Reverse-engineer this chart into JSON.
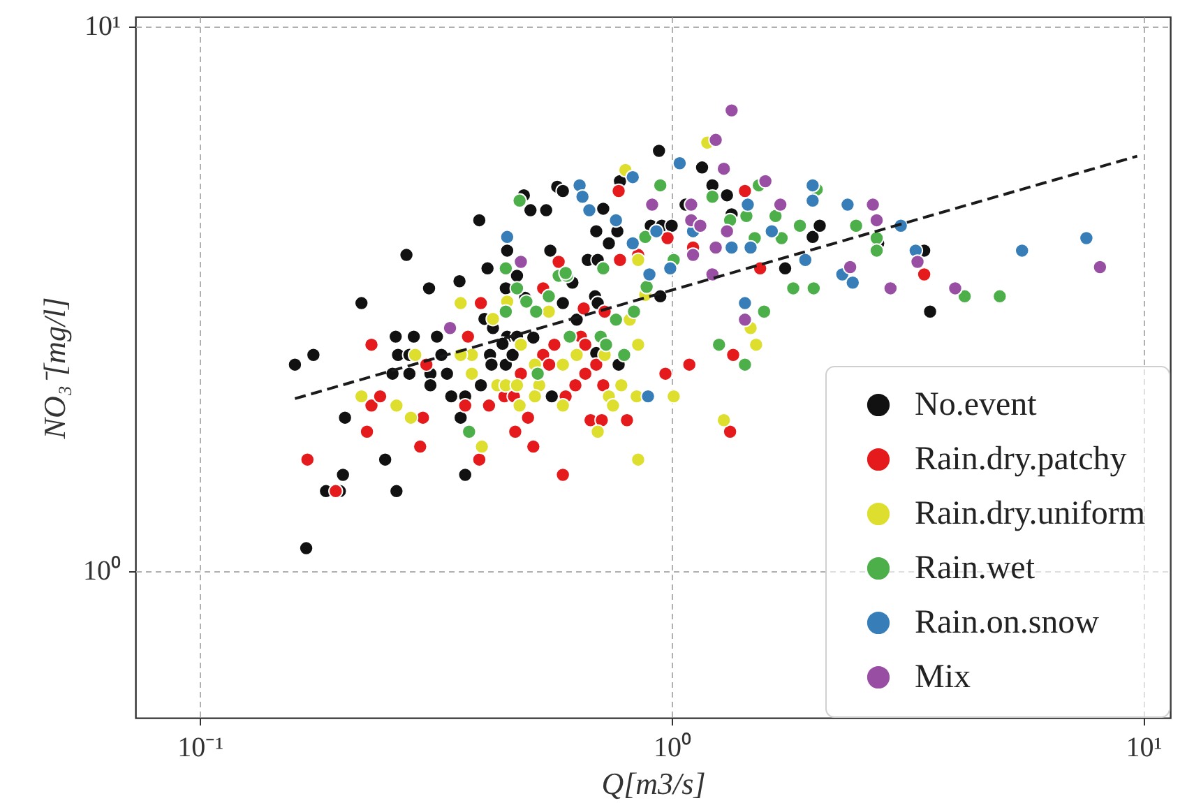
{
  "chart_data": {
    "type": "scatter",
    "xlabel": "Q[m3/s]",
    "ylabel": "NO₃⁻[mg/l]",
    "log": "xy",
    "grid": true,
    "legend": "bottom right",
    "marker": "circle",
    "xlim": [
      0.073,
      11.4
    ],
    "ylim": [
      0.537,
      10.4
    ],
    "xticks": [
      {
        "value": 0.1,
        "label": "10⁻¹"
      },
      {
        "value": 1,
        "label": "10⁰"
      },
      {
        "value": 10,
        "label": "10¹"
      }
    ],
    "yticks": [
      {
        "value": 1,
        "label": "10⁰"
      },
      {
        "value": 10,
        "label": "10¹"
      }
    ],
    "series": [
      {
        "name": "No.event",
        "color": "#111111",
        "x": [
          0.159,
          0.174,
          0.168,
          0.185,
          0.198,
          0.201,
          0.203,
          0.247,
          0.261,
          0.22,
          0.274,
          0.306,
          0.26,
          0.284,
          0.263,
          0.278,
          0.256,
          0.278,
          0.308,
          0.308,
          0.318,
          0.325,
          0.334,
          0.341,
          0.365,
          0.357,
          0.365,
          0.355,
          0.391,
          0.407,
          0.401,
          0.418,
          0.412,
          0.415,
          0.445,
          0.394,
          0.448,
          0.47,
          0.438,
          0.46,
          0.448,
          0.47,
          0.445,
          0.489,
          0.502,
          0.542,
          0.486,
          0.572,
          0.588,
          0.553,
          0.588,
          0.557,
          0.509,
          0.94,
          1.16,
          1.22,
          1.31,
          1.07,
          0.903,
          0.953,
          1.0,
          0.777,
          0.716,
          0.692,
          0.767,
          0.736,
          0.664,
          0.697,
          0.616,
          0.688,
          0.697,
          0.629,
          0.946,
          0.772,
          0.692,
          1.74,
          1.99,
          2.06,
          1.34,
          2.74,
          3.43,
          3.53
        ],
        "values": [
          2.39,
          2.49,
          1.1,
          1.4,
          1.4,
          1.5,
          1.91,
          1.6,
          1.4,
          3.1,
          3.8,
          3.3,
          2.69,
          2.69,
          2.49,
          2.49,
          2.3,
          2.3,
          2.3,
          2.19,
          2.69,
          2.49,
          2.3,
          2.09,
          2.09,
          1.91,
          1.5,
          3.4,
          4.4,
          3.59,
          2.9,
          2.79,
          2.49,
          2.39,
          2.39,
          2.19,
          2.69,
          2.69,
          2.61,
          2.49,
          3.87,
          3.48,
          3.3,
          3.17,
          4.59,
          4.59,
          4.89,
          5.07,
          4.98,
          3.87,
          3.1,
          2.09,
          2.68,
          5.9,
          5.5,
          5.1,
          4.89,
          4.7,
          4.3,
          4.3,
          4.3,
          5.19,
          4.62,
          4.2,
          4.2,
          3.99,
          3.72,
          3.72,
          3.38,
          3.19,
          3.1,
          2.89,
          3.19,
          2.39,
          2.51,
          3.59,
          4.1,
          4.3,
          4.51,
          3.99,
          3.87,
          2.99
        ]
      },
      {
        "name": "Rain.dry.patchy",
        "color": "#e41a1c",
        "x": [
          0.169,
          0.194,
          0.226,
          0.231,
          0.231,
          0.241,
          0.293,
          0.297,
          0.302,
          0.365,
          0.41,
          0.391,
          0.394,
          0.37,
          0.466,
          0.442,
          0.463,
          0.496,
          0.509,
          0.479,
          0.534,
          0.55,
          0.564,
          0.534,
          0.576,
          0.588,
          0.772,
          0.98,
          0.777,
          0.849,
          0.721,
          0.651,
          0.642,
          0.656,
          0.692,
          0.625,
          0.656,
          0.716,
          0.596,
          0.673,
          0.711,
          0.804,
          0.97,
          1.09,
          1.35,
          1.33,
          1.43,
          1.11,
          1.54,
          3.43
        ],
        "values": [
          1.6,
          1.4,
          1.8,
          2.6,
          2.01,
          2.09,
          1.69,
          1.91,
          2.39,
          2.01,
          2.01,
          1.6,
          3.1,
          2.69,
          1.8,
          2.09,
          2.09,
          1.91,
          1.69,
          2.3,
          2.49,
          2.39,
          2.6,
          3.3,
          3.69,
          1.5,
          4.98,
          4.08,
          3.72,
          3.8,
          2.99,
          3.03,
          2.69,
          2.6,
          2.39,
          2.19,
          2.3,
          2.19,
          2.09,
          1.89,
          1.89,
          1.89,
          2.3,
          2.39,
          2.49,
          1.8,
          4.98,
          3.92,
          3.59,
          3.5
        ]
      },
      {
        "name": "Rain.dry.uniform",
        "color": "#dede2e",
        "x": [
          0.22,
          0.261,
          0.28,
          0.396,
          0.357,
          0.377,
          0.357,
          0.377,
          0.427,
          0.445,
          0.47,
          0.476,
          0.513,
          0.524,
          0.513,
          0.479,
          0.448,
          0.549,
          0.588,
          0.286,
          0.418,
          0.798,
          1.19,
          0.849,
          0.879,
          0.815,
          0.588,
          0.629,
          0.721,
          0.849,
          0.782,
          0.736,
          0.751,
          0.843,
          1.01,
          0.697,
          0.849,
          1.29,
          1.47,
          1.51
        ],
        "values": [
          2.09,
          2.01,
          1.91,
          1.69,
          3.1,
          2.49,
          2.49,
          2.3,
          2.19,
          2.19,
          2.19,
          2.01,
          2.39,
          2.19,
          2.09,
          2.6,
          3.12,
          2.99,
          2.01,
          2.49,
          2.9,
          5.44,
          6.11,
          3.72,
          3.21,
          2.89,
          2.39,
          2.49,
          2.49,
          2.6,
          2.19,
          2.09,
          2.01,
          2.09,
          2.09,
          1.8,
          1.6,
          1.89,
          2.79,
          2.6
        ]
      },
      {
        "name": "Rain.wet",
        "color": "#4daf4a",
        "x": [
          0.476,
          0.445,
          0.47,
          0.445,
          0.492,
          0.516,
          0.549,
          0.576,
          0.6,
          0.372,
          0.52,
          0.608,
          0.946,
          0.879,
          0.596,
          0.716,
          0.885,
          1.01,
          0.832,
          0.762,
          0.707,
          0.726,
          0.793,
          1.22,
          1.33,
          1.44,
          1.5,
          1.53,
          1.66,
          1.71,
          1.87,
          1.81,
          2.0,
          2.03,
          2.46,
          1.26,
          1.57,
          1.43,
          2.72,
          2.72,
          4.18,
          4.96
        ],
        "values": [
          4.78,
          3.59,
          3.3,
          2.99,
          3.12,
          2.99,
          3.19,
          3.48,
          3.48,
          1.8,
          2.3,
          2.69,
          5.1,
          4.1,
          3.52,
          3.59,
          3.32,
          3.72,
          2.99,
          2.89,
          2.69,
          2.6,
          2.49,
          4.86,
          4.4,
          4.48,
          4.08,
          5.1,
          4.48,
          4.08,
          4.3,
          3.3,
          3.3,
          5.01,
          4.3,
          2.6,
          2.99,
          2.39,
          4.08,
          3.87,
          3.19,
          3.19
        ]
      },
      {
        "name": "Rain.on.snow",
        "color": "#377eb8",
        "x": [
          0.448,
          0.638,
          0.647,
          0.669,
          0.762,
          0.827,
          0.928,
          0.993,
          0.897,
          1.04,
          1.45,
          1.34,
          1.47,
          1.63,
          1.99,
          1.99,
          1.92,
          2.3,
          2.42,
          2.36,
          0.891,
          1.43,
          1.11,
          0.827,
          3.06,
          3.29,
          5.53,
          7.57
        ],
        "values": [
          4.1,
          5.1,
          4.86,
          4.59,
          4.4,
          3.99,
          4.2,
          3.59,
          3.5,
          5.6,
          4.7,
          3.92,
          3.92,
          4.2,
          5.1,
          4.78,
          3.72,
          3.5,
          3.38,
          4.7,
          2.09,
          3.1,
          4.2,
          5.28,
          4.3,
          3.87,
          3.87,
          4.08
        ]
      },
      {
        "name": "Mix",
        "color": "#984ea3",
        "x": [
          0.339,
          0.479,
          1.34,
          1.24,
          1.29,
          1.58,
          0.909,
          1.1,
          1.1,
          1.15,
          1.31,
          1.7,
          1.24,
          1.11,
          1.22,
          2.39,
          1.43,
          2.67,
          2.72,
          2.91,
          3.32,
          3.99,
          8.09
        ],
        "values": [
          2.79,
          3.69,
          7.0,
          6.18,
          5.47,
          5.19,
          4.7,
          4.7,
          4.4,
          4.3,
          4.2,
          4.7,
          3.92,
          3.8,
          3.5,
          3.61,
          2.89,
          4.7,
          4.4,
          3.3,
          3.69,
          3.3,
          3.61
        ]
      },
      {
        "type": "line",
        "color": "#1a1a1a",
        "line_style": "dashed",
        "marker": "none",
        "x": [
          0.159,
          9.7
        ],
        "values": [
          2.07,
          5.77
        ]
      }
    ]
  }
}
